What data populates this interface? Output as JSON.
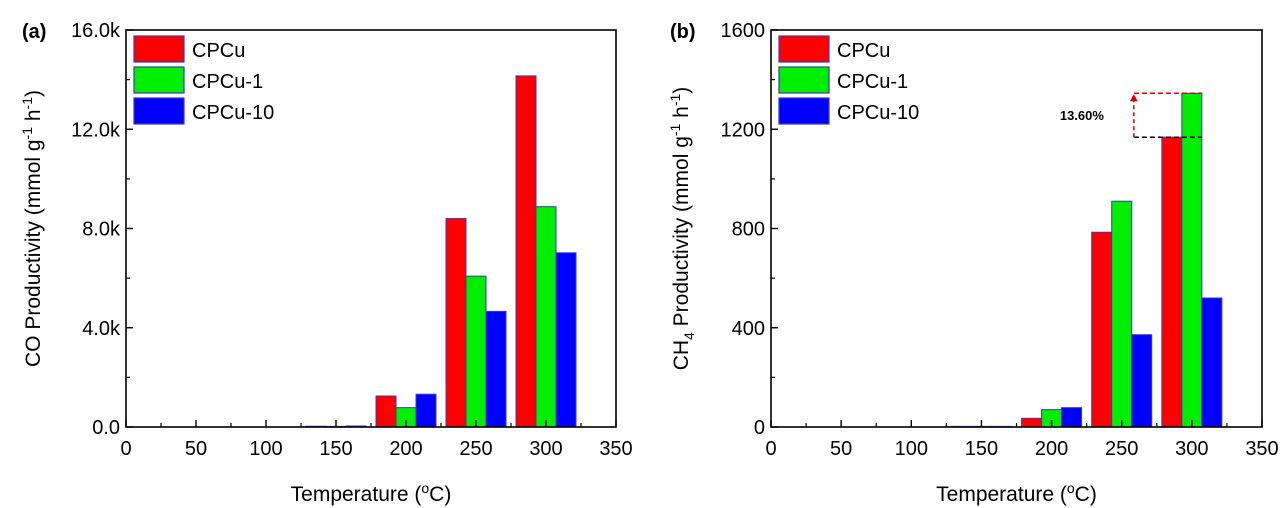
{
  "colors": {
    "CPCu": "#ff0000",
    "CPCu-1": "#00ee00",
    "CPCu-10": "#0000ff",
    "bar_edge": "#3a3ab0"
  },
  "chart_data": [
    {
      "panel": "(a)",
      "type": "bar",
      "x": [
        150,
        200,
        250,
        300
      ],
      "xlabel": "Temperature (°C)",
      "ylabel": "CO Productivity (mmol g-1 h-1)",
      "xlim": [
        0,
        350
      ],
      "ylim": [
        0,
        16000
      ],
      "xticks": [
        "0",
        "50",
        "100",
        "150",
        "200",
        "250",
        "300",
        "350"
      ],
      "yticks": [
        "0.0",
        "4.0k",
        "8.0k",
        "12.0k",
        "16.0k"
      ],
      "legend_position": "top-left",
      "series": [
        {
          "name": "CPCu",
          "values": [
            30,
            1250,
            8400,
            14150
          ]
        },
        {
          "name": "CPCu-1",
          "values": [
            20,
            780,
            6080,
            8880
          ]
        },
        {
          "name": "CPCu-10",
          "values": [
            40,
            1320,
            4660,
            7020
          ]
        }
      ]
    },
    {
      "panel": "(b)",
      "type": "bar",
      "x": [
        150,
        200,
        250,
        300
      ],
      "xlabel": "Temperature (°C)",
      "ylabel": "CH4 Productivity (mmol g-1 h-1)",
      "xlim": [
        0,
        350
      ],
      "ylim": [
        0,
        1600
      ],
      "xticks": [
        "0",
        "50",
        "100",
        "150",
        "200",
        "250",
        "300",
        "350"
      ],
      "yticks": [
        "0",
        "400",
        "800",
        "1200",
        "1600"
      ],
      "legend_position": "top-left",
      "annotation": "13.60%",
      "series": [
        {
          "name": "CPCu",
          "values": [
            2,
            35,
            785,
            1168
          ]
        },
        {
          "name": "CPCu-1",
          "values": [
            2,
            70,
            910,
            1345
          ]
        },
        {
          "name": "CPCu-10",
          "values": [
            2,
            78,
            372,
            520
          ]
        }
      ]
    }
  ]
}
